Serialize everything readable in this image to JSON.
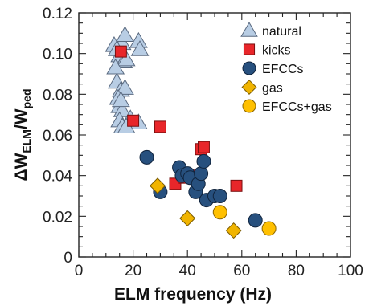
{
  "chart_data": {
    "type": "scatter",
    "xlabel": "ELM frequency (Hz)",
    "ylabel": {
      "prefix": "ΔW",
      "sub1": "ELM",
      "mid": "/W",
      "sub2": "ped"
    },
    "xlim": [
      0,
      100
    ],
    "ylim": [
      0,
      0.12
    ],
    "x_ticks": [
      0,
      20,
      40,
      60,
      80,
      100
    ],
    "x_tick_labels": [
      "0",
      "20",
      "40",
      "60",
      "80",
      "100"
    ],
    "y_ticks": [
      0,
      0.02,
      0.04,
      0.06,
      0.08,
      0.1,
      0.12
    ],
    "y_tick_labels": [
      "0",
      "0.02",
      "0.04",
      "0.06",
      "0.08",
      "0.10",
      "0.12"
    ],
    "grid": false,
    "legend_position": "top-right",
    "series": [
      {
        "name": "natural",
        "marker": "triangle",
        "color": "#b8cde4",
        "stroke": "#5a6a80",
        "points": [
          [
            13,
            0.104
          ],
          [
            16,
            0.105
          ],
          [
            17,
            0.109
          ],
          [
            22,
            0.106
          ],
          [
            22.5,
            0.102
          ],
          [
            14,
            0.102
          ],
          [
            15,
            0.099
          ],
          [
            16.5,
            0.096
          ],
          [
            17.5,
            0.097
          ],
          [
            13.5,
            0.093
          ],
          [
            14,
            0.086
          ],
          [
            15.5,
            0.082
          ],
          [
            17,
            0.083
          ],
          [
            14.5,
            0.078
          ],
          [
            15,
            0.074
          ],
          [
            16,
            0.072
          ],
          [
            15,
            0.067
          ],
          [
            19,
            0.068
          ],
          [
            22,
            0.066
          ],
          [
            16,
            0.064
          ],
          [
            17.5,
            0.064
          ],
          [
            15.5,
            0.077
          ]
        ]
      },
      {
        "name": "kicks",
        "marker": "square",
        "color": "#e8262a",
        "stroke": "#7a1010",
        "points": [
          [
            15.5,
            0.101
          ],
          [
            20,
            0.067
          ],
          [
            30,
            0.064
          ],
          [
            35.5,
            0.036
          ],
          [
            39,
            0.039
          ],
          [
            42,
            0.04
          ],
          [
            45,
            0.053
          ],
          [
            46,
            0.054
          ],
          [
            58,
            0.035
          ]
        ]
      },
      {
        "name": "EFCCs",
        "marker": "circle",
        "color": "#27507e",
        "stroke": "#10243e",
        "points": [
          [
            25,
            0.049
          ],
          [
            30,
            0.032
          ],
          [
            37,
            0.044
          ],
          [
            38,
            0.04
          ],
          [
            40,
            0.041
          ],
          [
            41,
            0.039
          ],
          [
            43,
            0.032
          ],
          [
            44,
            0.036
          ],
          [
            45,
            0.041
          ],
          [
            46,
            0.047
          ],
          [
            47,
            0.028
          ],
          [
            50,
            0.03
          ],
          [
            52,
            0.03
          ],
          [
            65,
            0.018
          ]
        ]
      },
      {
        "name": "gas",
        "marker": "diamond",
        "color": "#f0b400",
        "stroke": "#7a5a00",
        "points": [
          [
            29,
            0.035
          ],
          [
            40,
            0.019
          ],
          [
            57,
            0.013
          ]
        ]
      },
      {
        "name": "EFCCs+gas",
        "marker": "circle",
        "color": "#ffc000",
        "stroke": "#8a6400",
        "points": [
          [
            52,
            0.022
          ],
          [
            70,
            0.014
          ]
        ]
      }
    ]
  }
}
